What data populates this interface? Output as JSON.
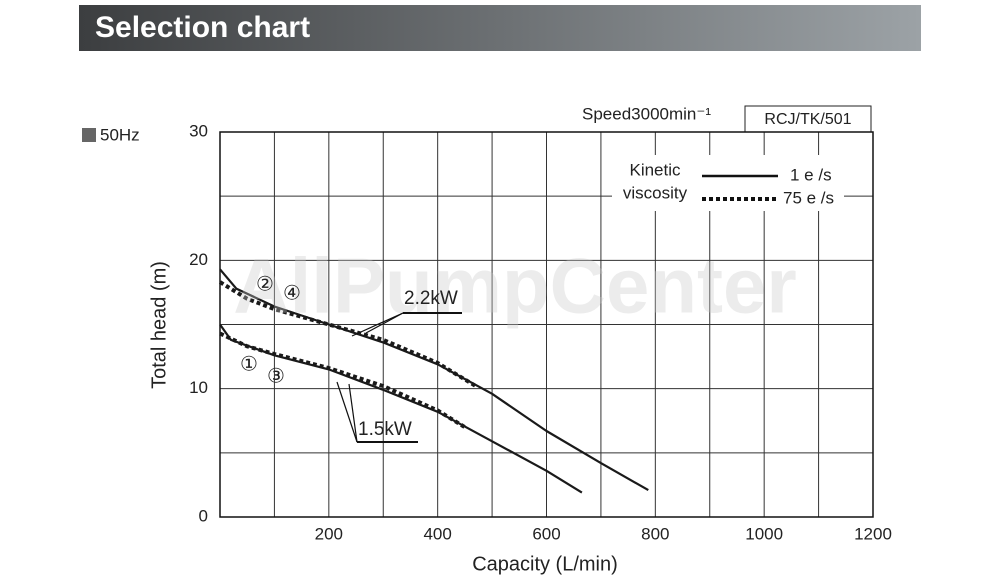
{
  "header": {
    "title": "Selection chart"
  },
  "chart_data": {
    "type": "line",
    "frequency": "50Hz",
    "speed": "Speed3000min⁻¹",
    "model": "RCJ/TK/501",
    "watermark": "AllPumpCenter",
    "x_label": "Capacity (L/min)",
    "y_label": "Total head (m)",
    "xlim": [
      0,
      1200
    ],
    "ylim": [
      0,
      30
    ],
    "xticks": [
      200,
      400,
      600,
      800,
      1000,
      1200
    ],
    "yticks": [
      0,
      10,
      20,
      30
    ],
    "xgrid": [
      0,
      100,
      200,
      300,
      400,
      500,
      600,
      700,
      800,
      900,
      1000,
      1100,
      1200
    ],
    "ygrid": [
      0,
      5,
      10,
      15,
      20,
      25,
      30
    ],
    "legend": {
      "title_lines": [
        "Kinetic",
        "viscosity"
      ],
      "entries": [
        {
          "name": "1 e /s",
          "dash": "solid"
        },
        {
          "name": "75 e /s",
          "dash": "dotted"
        }
      ]
    },
    "series": [
      {
        "name": "2.2kW",
        "dash": "solid",
        "color": "#1a1a1a",
        "markers": [
          "②",
          "④"
        ],
        "x": [
          0,
          30,
          100,
          200,
          300,
          400,
          500,
          600,
          700,
          787
        ],
        "values": [
          19.3,
          17.8,
          16.4,
          15.0,
          13.6,
          11.9,
          9.6,
          6.7,
          4.2,
          2.1
        ]
      },
      {
        "name": "2.2kW",
        "dash": "dotted",
        "color": "#1a1a1a",
        "x": [
          0,
          50,
          100,
          200,
          300,
          400,
          470
        ],
        "values": [
          18.3,
          17.0,
          16.2,
          15.0,
          13.8,
          12.0,
          10.2
        ]
      },
      {
        "name": "1.5kW",
        "dash": "solid",
        "color": "#1a1a1a",
        "markers": [
          "①",
          "③"
        ],
        "x": [
          0,
          20,
          100,
          200,
          300,
          400,
          500,
          600,
          665
        ],
        "values": [
          15.0,
          13.8,
          12.6,
          11.5,
          9.9,
          8.2,
          5.9,
          3.6,
          1.9
        ]
      },
      {
        "name": "1.5kW",
        "dash": "dotted",
        "color": "#1a1a1a",
        "x": [
          0,
          50,
          100,
          200,
          300,
          400,
          450
        ],
        "values": [
          14.3,
          13.3,
          12.7,
          11.6,
          10.2,
          8.3,
          7.0
        ]
      }
    ]
  }
}
